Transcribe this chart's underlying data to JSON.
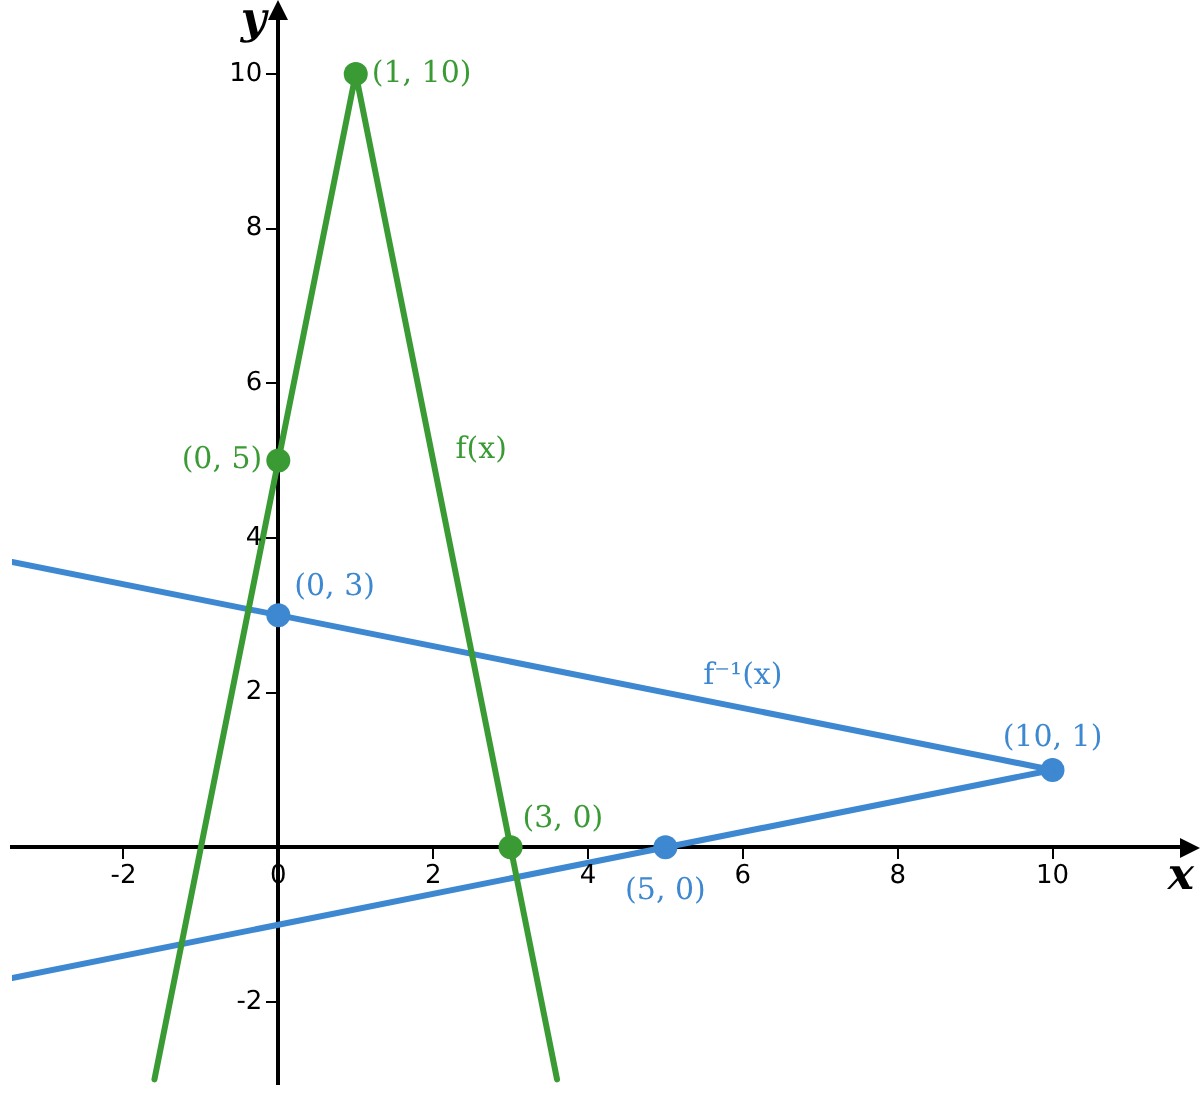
{
  "chart_data": {
    "type": "line",
    "xlabel": "x",
    "ylabel": "y",
    "xlim": [
      -3.44,
      11.75
    ],
    "ylim": [
      -3.06,
      10.8
    ],
    "xticks": [
      -2,
      0,
      2,
      4,
      6,
      8,
      10
    ],
    "yticks": [
      -2,
      2,
      4,
      6,
      8,
      10
    ],
    "grid": false,
    "legend": false,
    "series": [
      {
        "type": "line",
        "color": "#3a9b35",
        "x": [
          -1.6,
          1,
          3.6
        ],
        "values": [
          -3,
          10,
          -3
        ],
        "marker": "none"
      },
      {
        "type": "line",
        "color": "#3d88d0",
        "x": [
          -3.44,
          10,
          -3.44
        ],
        "values": [
          3.69,
          1,
          -1.69
        ],
        "marker": "none"
      },
      {
        "type": "scatter",
        "color": "#3a9b35",
        "x": [
          0,
          1,
          3
        ],
        "values": [
          5,
          10,
          0
        ],
        "marker": "circle"
      },
      {
        "type": "scatter",
        "color": "#3d88d0",
        "x": [
          0,
          10,
          5
        ],
        "values": [
          3,
          1,
          0
        ],
        "marker": "circle"
      }
    ],
    "annotations": [
      {
        "text": "(0, 5)",
        "x": 0,
        "y": 5
      },
      {
        "text": "(1, 10)",
        "x": 1,
        "y": 10
      },
      {
        "text": "(3, 0)",
        "x": 3,
        "y": 0
      },
      {
        "text": "(0, 3)",
        "x": 0,
        "y": 3
      },
      {
        "text": "(10, 1)",
        "x": 10,
        "y": 1
      },
      {
        "text": "(5, 0)",
        "x": 5,
        "y": 0
      },
      {
        "text": "f(x)",
        "x": 2,
        "y": 5
      },
      {
        "text": "f⁻¹(x)",
        "x": 6,
        "y": 1.8
      }
    ]
  }
}
